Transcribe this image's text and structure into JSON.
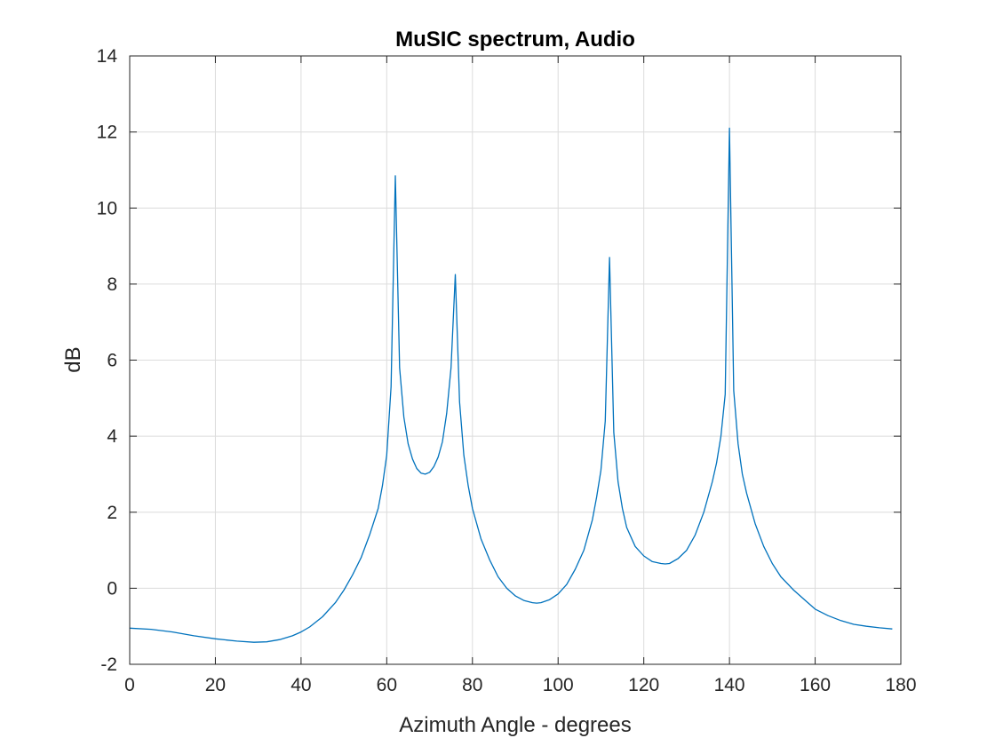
{
  "chart_data": {
    "type": "line",
    "title": "MuSIC spectrum, Audio",
    "xlabel": "Azimuth Angle - degrees",
    "ylabel": "dB",
    "xlim": [
      0,
      180
    ],
    "ylim": [
      -2,
      14
    ],
    "xticks": [
      "0",
      "20",
      "40",
      "60",
      "80",
      "100",
      "120",
      "140",
      "160",
      "180"
    ],
    "yticks": [
      "-2",
      "0",
      "2",
      "4",
      "6",
      "8",
      "10",
      "12",
      "14"
    ],
    "grid": true,
    "line_color": "#0072BD",
    "series": [
      {
        "points": [
          [
            0,
            -1.05
          ],
          [
            5,
            -1.08
          ],
          [
            10,
            -1.15
          ],
          [
            15,
            -1.25
          ],
          [
            20,
            -1.33
          ],
          [
            25,
            -1.39
          ],
          [
            29,
            -1.42
          ],
          [
            32,
            -1.41
          ],
          [
            35,
            -1.35
          ],
          [
            38,
            -1.25
          ],
          [
            40,
            -1.15
          ],
          [
            42,
            -1.02
          ],
          [
            45,
            -0.75
          ],
          [
            48,
            -0.38
          ],
          [
            50,
            -0.05
          ],
          [
            52,
            0.35
          ],
          [
            54,
            0.8
          ],
          [
            56,
            1.4
          ],
          [
            58,
            2.1
          ],
          [
            59,
            2.7
          ],
          [
            60,
            3.5
          ],
          [
            61,
            5.3
          ],
          [
            62,
            10.85
          ],
          [
            63,
            5.8
          ],
          [
            64,
            4.5
          ],
          [
            65,
            3.8
          ],
          [
            66,
            3.4
          ],
          [
            67,
            3.15
          ],
          [
            68,
            3.03
          ],
          [
            69,
            3.0
          ],
          [
            70,
            3.05
          ],
          [
            71,
            3.2
          ],
          [
            72,
            3.45
          ],
          [
            73,
            3.85
          ],
          [
            74,
            4.6
          ],
          [
            75,
            5.8
          ],
          [
            76,
            8.25
          ],
          [
            77,
            4.9
          ],
          [
            78,
            3.5
          ],
          [
            79,
            2.7
          ],
          [
            80,
            2.1
          ],
          [
            82,
            1.3
          ],
          [
            84,
            0.75
          ],
          [
            86,
            0.3
          ],
          [
            88,
            0.0
          ],
          [
            90,
            -0.2
          ],
          [
            92,
            -0.32
          ],
          [
            94,
            -0.38
          ],
          [
            95,
            -0.39
          ],
          [
            96,
            -0.38
          ],
          [
            98,
            -0.3
          ],
          [
            100,
            -0.15
          ],
          [
            102,
            0.1
          ],
          [
            104,
            0.5
          ],
          [
            106,
            1.0
          ],
          [
            108,
            1.8
          ],
          [
            109,
            2.4
          ],
          [
            110,
            3.1
          ],
          [
            111,
            4.4
          ],
          [
            112,
            8.7
          ],
          [
            113,
            4.1
          ],
          [
            114,
            2.8
          ],
          [
            115,
            2.1
          ],
          [
            116,
            1.6
          ],
          [
            118,
            1.1
          ],
          [
            120,
            0.85
          ],
          [
            122,
            0.7
          ],
          [
            124,
            0.65
          ],
          [
            125,
            0.64
          ],
          [
            126,
            0.65
          ],
          [
            128,
            0.78
          ],
          [
            130,
            1.0
          ],
          [
            132,
            1.4
          ],
          [
            134,
            2.0
          ],
          [
            136,
            2.8
          ],
          [
            137,
            3.3
          ],
          [
            138,
            4.0
          ],
          [
            139,
            5.1
          ],
          [
            140,
            12.1
          ],
          [
            141,
            5.2
          ],
          [
            142,
            3.8
          ],
          [
            143,
            3.0
          ],
          [
            144,
            2.5
          ],
          [
            146,
            1.7
          ],
          [
            148,
            1.1
          ],
          [
            150,
            0.65
          ],
          [
            152,
            0.3
          ],
          [
            155,
            -0.05
          ],
          [
            158,
            -0.35
          ],
          [
            160,
            -0.55
          ],
          [
            163,
            -0.72
          ],
          [
            166,
            -0.85
          ],
          [
            169,
            -0.95
          ],
          [
            172,
            -1.0
          ],
          [
            175,
            -1.04
          ],
          [
            178,
            -1.07
          ]
        ]
      }
    ]
  }
}
